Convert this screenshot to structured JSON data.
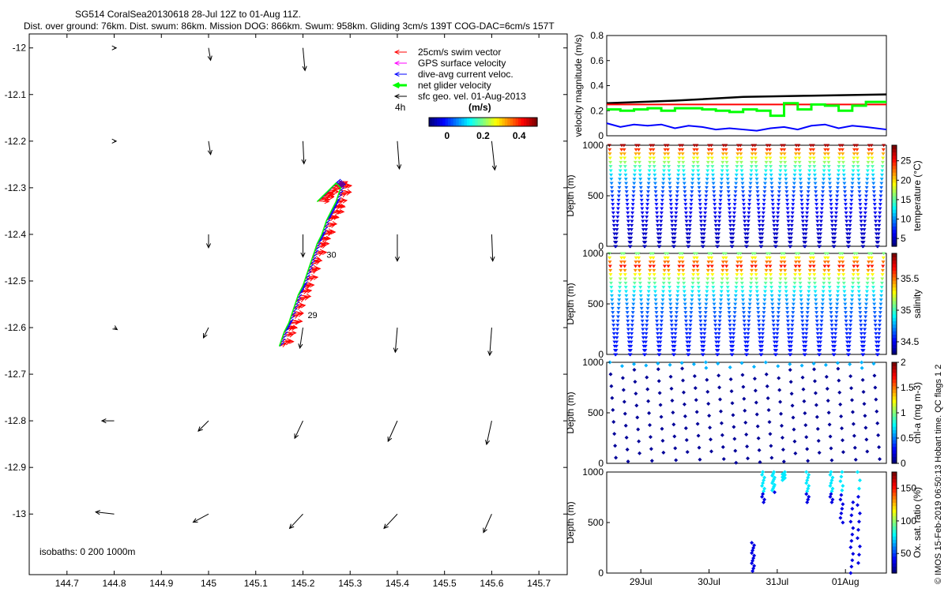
{
  "header": {
    "line1": "SG514 CoralSea20130618 28-Jul 12Z to 01-Aug 11Z.",
    "line2": "Dist. over ground: 76km. Dist. swum: 86km. Mission DOG: 866km. Swum: 958km. Gliding 3cm/s 139T COG-DAC=6cm/s 157T"
  },
  "credit": "© IMOS 15-Feb-2019 06:50:13 Hobart time. QC flags 1  2",
  "colors": {
    "swim": "#ff0000",
    "gps": "#ff00ff",
    "dac": "#0000ff",
    "net": "#00ff00",
    "geo": "#000000"
  },
  "chart_data": [
    {
      "type": "scatter",
      "name": "map",
      "xlim": [
        144.62,
        145.76
      ],
      "ylim": [
        -13.13,
        -11.97
      ],
      "xticks": [
        "144.7",
        "144.8",
        "144.9",
        "145",
        "145.1",
        "145.2",
        "145.3",
        "145.4",
        "145.5",
        "145.6",
        "145.7"
      ],
      "xtick_values": [
        144.7,
        144.8,
        144.9,
        145.0,
        145.1,
        145.2,
        145.3,
        145.4,
        145.5,
        145.6,
        145.7
      ],
      "yticks": [
        "-12",
        "-12.1",
        "-12.2",
        "-12.3",
        "-12.4",
        "-12.5",
        "-12.6",
        "-12.7",
        "-12.8",
        "-12.9",
        "-13"
      ],
      "ytick_values": [
        -12,
        -12.1,
        -12.2,
        -12.3,
        -12.4,
        -12.5,
        -12.6,
        -12.7,
        -12.8,
        -12.9,
        -13
      ],
      "legend": {
        "placement": "top-right",
        "items": [
          {
            "label": "25cm/s swim vector",
            "color": "#ff0000"
          },
          {
            "label": "GPS surface velocity",
            "color": "#ff00ff"
          },
          {
            "label": "dive-avg current veloc.",
            "color": "#0000ff"
          },
          {
            "label": "net glider velocity",
            "color": "#00ff00"
          },
          {
            "label": "sfc geo. vel. 01-Aug-2013",
            "color": "#000000"
          }
        ],
        "scale_label": "4h",
        "unit_label": "(m/s)"
      },
      "colorbar": {
        "ticks": [
          "0",
          "0.2",
          "0.4"
        ],
        "tick_values": [
          0,
          0.2,
          0.4
        ],
        "range": [
          -0.1,
          0.5
        ]
      },
      "isobaths_label": "isobaths: 0   200   1000m",
      "track": [
        [
          145.15,
          -12.64
        ],
        [
          145.16,
          -12.61
        ],
        [
          145.17,
          -12.59
        ],
        [
          145.18,
          -12.56
        ],
        [
          145.19,
          -12.53
        ],
        [
          145.2,
          -12.51
        ],
        [
          145.21,
          -12.48
        ],
        [
          145.22,
          -12.45
        ],
        [
          145.23,
          -12.42
        ],
        [
          145.24,
          -12.4
        ],
        [
          145.25,
          -12.37
        ],
        [
          145.26,
          -12.35
        ],
        [
          145.27,
          -12.33
        ],
        [
          145.28,
          -12.3
        ],
        [
          145.27,
          -12.29
        ],
        [
          145.25,
          -12.31
        ],
        [
          145.24,
          -12.32
        ],
        [
          145.23,
          -12.33
        ]
      ],
      "day_labels": [
        {
          "text": "29",
          "lon": 145.21,
          "lat": -12.58
        },
        {
          "text": "30",
          "lon": 145.25,
          "lat": -12.45
        }
      ],
      "geo_vectors": [
        {
          "lon": 144.8,
          "lat": -12.0,
          "u": 0.02,
          "v": 0.0
        },
        {
          "lon": 145.0,
          "lat": -12.0,
          "u": 0.02,
          "v": -0.12
        },
        {
          "lon": 145.2,
          "lat": -12.0,
          "u": 0.02,
          "v": -0.22
        },
        {
          "lon": 144.8,
          "lat": -12.2,
          "u": 0.02,
          "v": 0.0
        },
        {
          "lon": 145.0,
          "lat": -12.2,
          "u": 0.02,
          "v": -0.13
        },
        {
          "lon": 145.2,
          "lat": -12.2,
          "u": 0.01,
          "v": -0.22
        },
        {
          "lon": 145.4,
          "lat": -12.2,
          "u": 0.02,
          "v": -0.27
        },
        {
          "lon": 145.6,
          "lat": -12.2,
          "u": 0.03,
          "v": -0.28
        },
        {
          "lon": 145.0,
          "lat": -12.4,
          "u": 0.0,
          "v": -0.13
        },
        {
          "lon": 145.2,
          "lat": -12.4,
          "u": 0.0,
          "v": -0.22
        },
        {
          "lon": 145.4,
          "lat": -12.4,
          "u": 0.0,
          "v": -0.26
        },
        {
          "lon": 145.6,
          "lat": -12.4,
          "u": 0.01,
          "v": -0.26
        },
        {
          "lon": 144.8,
          "lat": -12.6,
          "u": 0.03,
          "v": -0.02
        },
        {
          "lon": 145.0,
          "lat": -12.6,
          "u": -0.05,
          "v": -0.1
        },
        {
          "lon": 145.2,
          "lat": -12.6,
          "u": -0.03,
          "v": -0.2
        },
        {
          "lon": 145.4,
          "lat": -12.6,
          "u": -0.02,
          "v": -0.24
        },
        {
          "lon": 145.6,
          "lat": -12.6,
          "u": -0.02,
          "v": -0.27
        },
        {
          "lon": 144.8,
          "lat": -12.8,
          "u": -0.12,
          "v": 0.0
        },
        {
          "lon": 145.0,
          "lat": -12.8,
          "u": -0.1,
          "v": -0.1
        },
        {
          "lon": 145.2,
          "lat": -12.8,
          "u": -0.08,
          "v": -0.17
        },
        {
          "lon": 145.4,
          "lat": -12.8,
          "u": -0.09,
          "v": -0.2
        },
        {
          "lon": 145.6,
          "lat": -12.8,
          "u": -0.05,
          "v": -0.23
        },
        {
          "lon": 144.8,
          "lat": -13.0,
          "u": -0.18,
          "v": 0.02
        },
        {
          "lon": 145.0,
          "lat": -13.0,
          "u": -0.15,
          "v": -0.08
        },
        {
          "lon": 145.2,
          "lat": -13.0,
          "u": -0.13,
          "v": -0.14
        },
        {
          "lon": 145.4,
          "lat": -13.0,
          "u": -0.13,
          "v": -0.14
        },
        {
          "lon": 145.6,
          "lat": -13.0,
          "u": -0.08,
          "v": -0.18
        }
      ]
    },
    {
      "type": "line",
      "name": "velocity",
      "ylabel": "velocity magnitude (m/s)",
      "ylim": [
        0,
        0.8
      ],
      "yticks": [
        "0",
        "0.2",
        "0.4",
        "0.6",
        "0.8"
      ],
      "ytick_values": [
        0,
        0.2,
        0.4,
        0.6,
        0.8
      ],
      "xlim": [
        0,
        4.1
      ],
      "series": [
        {
          "color": "#000000",
          "x": [
            0,
            1,
            2,
            3,
            4.1
          ],
          "y": [
            0.26,
            0.28,
            0.31,
            0.32,
            0.33
          ]
        },
        {
          "color": "#ff0000",
          "x": [
            0,
            4.1
          ],
          "y": [
            0.25,
            0.25
          ]
        },
        {
          "color": "#00ff00",
          "x": [
            0,
            0.2,
            0.4,
            0.6,
            0.8,
            1.0,
            1.2,
            1.4,
            1.6,
            1.8,
            2.0,
            2.2,
            2.4,
            2.6,
            2.8,
            3.0,
            3.2,
            3.4,
            3.6,
            3.8,
            4.1
          ],
          "y": [
            0.21,
            0.2,
            0.21,
            0.22,
            0.2,
            0.22,
            0.22,
            0.21,
            0.2,
            0.19,
            0.21,
            0.2,
            0.16,
            0.26,
            0.21,
            0.25,
            0.24,
            0.2,
            0.24,
            0.27,
            0.21
          ]
        },
        {
          "color": "#0000ff",
          "x": [
            0,
            0.2,
            0.4,
            0.6,
            0.8,
            1.0,
            1.2,
            1.4,
            1.6,
            1.8,
            2.0,
            2.2,
            2.4,
            2.6,
            2.8,
            3.0,
            3.2,
            3.4,
            3.6,
            3.8,
            4.1
          ],
          "y": [
            0.1,
            0.07,
            0.09,
            0.08,
            0.09,
            0.06,
            0.08,
            0.07,
            0.05,
            0.06,
            0.05,
            0.04,
            0.06,
            0.07,
            0.05,
            0.08,
            0.09,
            0.06,
            0.08,
            0.07,
            0.05
          ]
        }
      ]
    },
    {
      "type": "scatter",
      "name": "temperature",
      "ylabel": "Depth (m)",
      "cblabel": "temperature (°C)",
      "ylim": [
        1000,
        0
      ],
      "yticks": [
        "0",
        "500",
        "1000"
      ],
      "ytick_values": [
        0,
        500,
        1000
      ],
      "cbticks": [
        "5",
        "10",
        "15",
        "20",
        "25"
      ],
      "cbtick_values": [
        5,
        10,
        15,
        20,
        25
      ],
      "cbrange": [
        3,
        29
      ],
      "profiles": "sawtooth dives 0-1000 m, warm (28°C) at surface to cold (4°C) at depth",
      "surface_value": 28,
      "deep_value": 4
    },
    {
      "type": "scatter",
      "name": "salinity",
      "ylabel": "Depth (m)",
      "cblabel": "salinity",
      "ylim": [
        1000,
        0
      ],
      "yticks": [
        "0",
        "500",
        "1000"
      ],
      "ytick_values": [
        0,
        500,
        1000
      ],
      "cbticks": [
        "34.5",
        "35",
        "35.5"
      ],
      "cbtick_values": [
        34.5,
        35,
        35.5
      ],
      "cbrange": [
        34.3,
        35.9
      ],
      "surface_value": 35.1,
      "mid_value": 35.7,
      "deep_value": 34.5
    },
    {
      "type": "scatter",
      "name": "chla",
      "ylabel": "Depth (m)",
      "cblabel": "chl-a (mg m-3)",
      "ylim": [
        1000,
        0
      ],
      "yticks": [
        "0",
        "500",
        "1000"
      ],
      "ytick_values": [
        0,
        500,
        1000
      ],
      "cbticks": [
        "0",
        "0.5",
        "1",
        "1.5",
        "2"
      ],
      "cbtick_values": [
        0,
        0.5,
        1,
        1.5,
        2
      ],
      "cbrange": [
        0,
        2
      ]
    },
    {
      "type": "scatter",
      "name": "oxygen",
      "ylabel": "Depth (m)",
      "cblabel": "Ox. sat. ratio (%)",
      "ylim": [
        1000,
        0
      ],
      "yticks": [
        "0",
        "500",
        "1000"
      ],
      "ytick_values": [
        0,
        500,
        1000
      ],
      "cbticks": [
        "50",
        "100",
        "150"
      ],
      "cbtick_values": [
        50,
        100,
        150
      ],
      "cbrange": [
        20,
        175
      ],
      "xticks": [
        "29Jul",
        "30Jul",
        "31Jul",
        "01Aug"
      ],
      "xtick_values": [
        0.5,
        1.5,
        2.5,
        3.5
      ],
      "xlim": [
        0,
        4.1
      ]
    }
  ]
}
